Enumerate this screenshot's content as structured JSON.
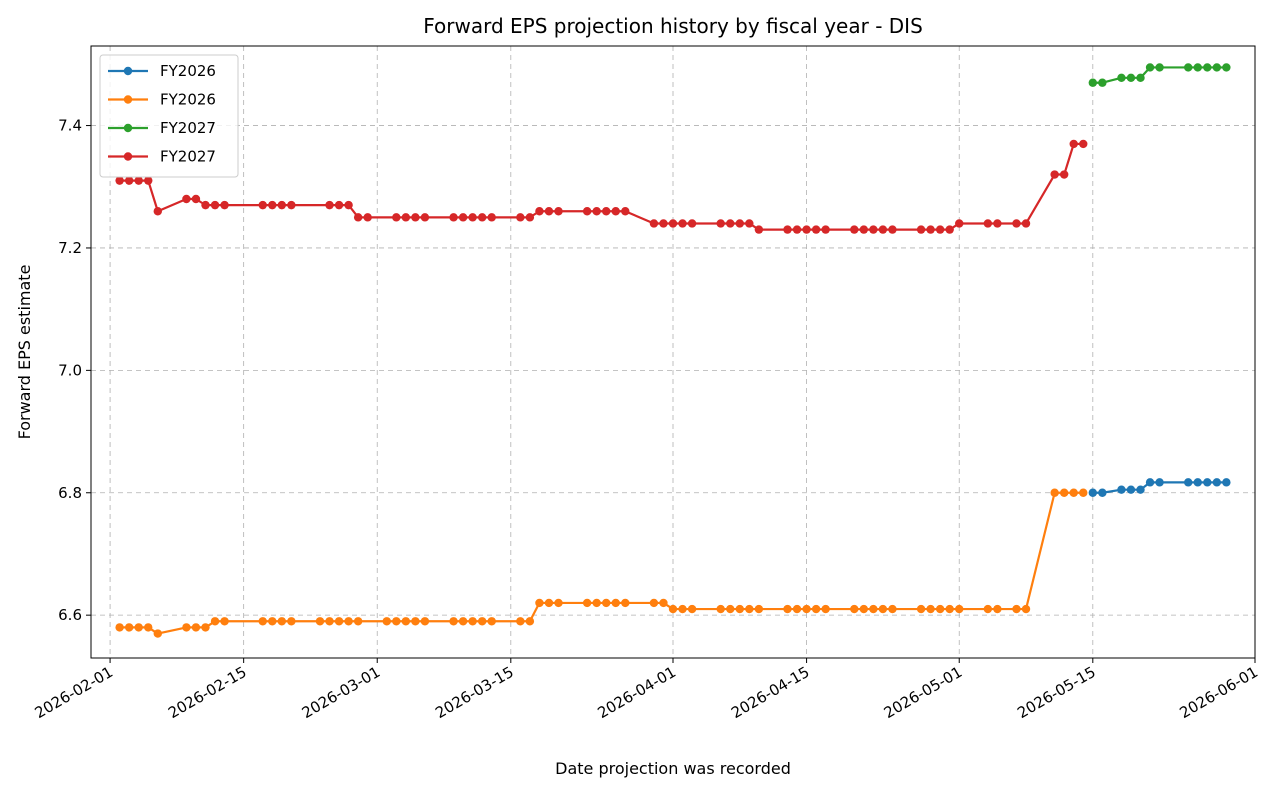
{
  "chart_data": {
    "type": "line",
    "title": "Forward EPS projection history by fiscal year - DIS",
    "xlabel": "Date projection was recorded",
    "ylabel": "Forward EPS estimate",
    "xlim": [
      "2026-01-30",
      "2026-06-01"
    ],
    "ylim": [
      6.53,
      7.53
    ],
    "grid": true,
    "legend": "top-left",
    "x_ticks": [
      "2026-02-01",
      "2026-02-15",
      "2026-03-01",
      "2026-03-15",
      "2026-04-01",
      "2026-04-15",
      "2026-05-01",
      "2026-05-15",
      "2026-06-01"
    ],
    "y_ticks": [
      6.6,
      6.8,
      7.0,
      7.2,
      7.4
    ],
    "y_tick_labels": [
      "6.6",
      "6.8",
      "7.0",
      "7.2",
      "7.4"
    ],
    "series": [
      {
        "name": "FY2026",
        "color": "#1f77b4",
        "points": [
          [
            "2026-05-15",
            6.8
          ],
          [
            "2026-05-16",
            6.8
          ],
          [
            "2026-05-18",
            6.805
          ],
          [
            "2026-05-19",
            6.805
          ],
          [
            "2026-05-20",
            6.805
          ],
          [
            "2026-05-21",
            6.817
          ],
          [
            "2026-05-22",
            6.817
          ],
          [
            "2026-05-25",
            6.817
          ],
          [
            "2026-05-26",
            6.817
          ],
          [
            "2026-05-27",
            6.817
          ],
          [
            "2026-05-28",
            6.817
          ],
          [
            "2026-05-29",
            6.817
          ]
        ]
      },
      {
        "name": "FY2026",
        "color": "#ff7f0e",
        "points": [
          [
            "2026-02-02",
            6.58
          ],
          [
            "2026-02-03",
            6.58
          ],
          [
            "2026-02-04",
            6.58
          ],
          [
            "2026-02-05",
            6.58
          ],
          [
            "2026-02-06",
            6.57
          ],
          [
            "2026-02-09",
            6.58
          ],
          [
            "2026-02-10",
            6.58
          ],
          [
            "2026-02-11",
            6.58
          ],
          [
            "2026-02-12",
            6.59
          ],
          [
            "2026-02-13",
            6.59
          ],
          [
            "2026-02-17",
            6.59
          ],
          [
            "2026-02-18",
            6.59
          ],
          [
            "2026-02-19",
            6.59
          ],
          [
            "2026-02-20",
            6.59
          ],
          [
            "2026-02-23",
            6.59
          ],
          [
            "2026-02-24",
            6.59
          ],
          [
            "2026-02-25",
            6.59
          ],
          [
            "2026-02-26",
            6.59
          ],
          [
            "2026-02-27",
            6.59
          ],
          [
            "2026-03-02",
            6.59
          ],
          [
            "2026-03-03",
            6.59
          ],
          [
            "2026-03-04",
            6.59
          ],
          [
            "2026-03-05",
            6.59
          ],
          [
            "2026-03-06",
            6.59
          ],
          [
            "2026-03-09",
            6.59
          ],
          [
            "2026-03-10",
            6.59
          ],
          [
            "2026-03-11",
            6.59
          ],
          [
            "2026-03-12",
            6.59
          ],
          [
            "2026-03-13",
            6.59
          ],
          [
            "2026-03-16",
            6.59
          ],
          [
            "2026-03-17",
            6.59
          ],
          [
            "2026-03-18",
            6.62
          ],
          [
            "2026-03-19",
            6.62
          ],
          [
            "2026-03-20",
            6.62
          ],
          [
            "2026-03-23",
            6.62
          ],
          [
            "2026-03-24",
            6.62
          ],
          [
            "2026-03-25",
            6.62
          ],
          [
            "2026-03-26",
            6.62
          ],
          [
            "2026-03-27",
            6.62
          ],
          [
            "2026-03-30",
            6.62
          ],
          [
            "2026-03-31",
            6.62
          ],
          [
            "2026-04-01",
            6.61
          ],
          [
            "2026-04-02",
            6.61
          ],
          [
            "2026-04-03",
            6.61
          ],
          [
            "2026-04-06",
            6.61
          ],
          [
            "2026-04-07",
            6.61
          ],
          [
            "2026-04-08",
            6.61
          ],
          [
            "2026-04-09",
            6.61
          ],
          [
            "2026-04-10",
            6.61
          ],
          [
            "2026-04-13",
            6.61
          ],
          [
            "2026-04-14",
            6.61
          ],
          [
            "2026-04-15",
            6.61
          ],
          [
            "2026-04-16",
            6.61
          ],
          [
            "2026-04-17",
            6.61
          ],
          [
            "2026-04-20",
            6.61
          ],
          [
            "2026-04-21",
            6.61
          ],
          [
            "2026-04-22",
            6.61
          ],
          [
            "2026-04-23",
            6.61
          ],
          [
            "2026-04-24",
            6.61
          ],
          [
            "2026-04-27",
            6.61
          ],
          [
            "2026-04-28",
            6.61
          ],
          [
            "2026-04-29",
            6.61
          ],
          [
            "2026-04-30",
            6.61
          ],
          [
            "2026-05-01",
            6.61
          ],
          [
            "2026-05-04",
            6.61
          ],
          [
            "2026-05-05",
            6.61
          ],
          [
            "2026-05-07",
            6.61
          ],
          [
            "2026-05-08",
            6.61
          ],
          [
            "2026-05-11",
            6.8
          ],
          [
            "2026-05-12",
            6.8
          ],
          [
            "2026-05-13",
            6.8
          ],
          [
            "2026-05-14",
            6.8
          ]
        ]
      },
      {
        "name": "FY2027",
        "color": "#2ca02c",
        "points": [
          [
            "2026-05-15",
            7.47
          ],
          [
            "2026-05-16",
            7.47
          ],
          [
            "2026-05-18",
            7.478
          ],
          [
            "2026-05-19",
            7.478
          ],
          [
            "2026-05-20",
            7.478
          ],
          [
            "2026-05-21",
            7.495
          ],
          [
            "2026-05-22",
            7.495
          ],
          [
            "2026-05-25",
            7.495
          ],
          [
            "2026-05-26",
            7.495
          ],
          [
            "2026-05-27",
            7.495
          ],
          [
            "2026-05-28",
            7.495
          ],
          [
            "2026-05-29",
            7.495
          ]
        ]
      },
      {
        "name": "FY2027",
        "color": "#d62728",
        "points": [
          [
            "2026-02-02",
            7.31
          ],
          [
            "2026-02-03",
            7.31
          ],
          [
            "2026-02-04",
            7.31
          ],
          [
            "2026-02-05",
            7.31
          ],
          [
            "2026-02-06",
            7.26
          ],
          [
            "2026-02-09",
            7.28
          ],
          [
            "2026-02-10",
            7.28
          ],
          [
            "2026-02-11",
            7.27
          ],
          [
            "2026-02-12",
            7.27
          ],
          [
            "2026-02-13",
            7.27
          ],
          [
            "2026-02-17",
            7.27
          ],
          [
            "2026-02-18",
            7.27
          ],
          [
            "2026-02-19",
            7.27
          ],
          [
            "2026-02-20",
            7.27
          ],
          [
            "2026-02-24",
            7.27
          ],
          [
            "2026-02-25",
            7.27
          ],
          [
            "2026-02-26",
            7.27
          ],
          [
            "2026-02-27",
            7.25
          ],
          [
            "2026-02-28",
            7.25
          ],
          [
            "2026-03-03",
            7.25
          ],
          [
            "2026-03-04",
            7.25
          ],
          [
            "2026-03-05",
            7.25
          ],
          [
            "2026-03-06",
            7.25
          ],
          [
            "2026-03-09",
            7.25
          ],
          [
            "2026-03-10",
            7.25
          ],
          [
            "2026-03-11",
            7.25
          ],
          [
            "2026-03-12",
            7.25
          ],
          [
            "2026-03-13",
            7.25
          ],
          [
            "2026-03-16",
            7.25
          ],
          [
            "2026-03-17",
            7.25
          ],
          [
            "2026-03-18",
            7.26
          ],
          [
            "2026-03-19",
            7.26
          ],
          [
            "2026-03-20",
            7.26
          ],
          [
            "2026-03-23",
            7.26
          ],
          [
            "2026-03-24",
            7.26
          ],
          [
            "2026-03-25",
            7.26
          ],
          [
            "2026-03-26",
            7.26
          ],
          [
            "2026-03-27",
            7.26
          ],
          [
            "2026-03-30",
            7.24
          ],
          [
            "2026-03-31",
            7.24
          ],
          [
            "2026-04-01",
            7.24
          ],
          [
            "2026-04-02",
            7.24
          ],
          [
            "2026-04-03",
            7.24
          ],
          [
            "2026-04-06",
            7.24
          ],
          [
            "2026-04-07",
            7.24
          ],
          [
            "2026-04-08",
            7.24
          ],
          [
            "2026-04-09",
            7.24
          ],
          [
            "2026-04-10",
            7.23
          ],
          [
            "2026-04-13",
            7.23
          ],
          [
            "2026-04-14",
            7.23
          ],
          [
            "2026-04-15",
            7.23
          ],
          [
            "2026-04-16",
            7.23
          ],
          [
            "2026-04-17",
            7.23
          ],
          [
            "2026-04-20",
            7.23
          ],
          [
            "2026-04-21",
            7.23
          ],
          [
            "2026-04-22",
            7.23
          ],
          [
            "2026-04-23",
            7.23
          ],
          [
            "2026-04-24",
            7.23
          ],
          [
            "2026-04-27",
            7.23
          ],
          [
            "2026-04-28",
            7.23
          ],
          [
            "2026-04-29",
            7.23
          ],
          [
            "2026-04-30",
            7.23
          ],
          [
            "2026-05-01",
            7.24
          ],
          [
            "2026-05-04",
            7.24
          ],
          [
            "2026-05-05",
            7.24
          ],
          [
            "2026-05-07",
            7.24
          ],
          [
            "2026-05-08",
            7.24
          ],
          [
            "2026-05-11",
            7.32
          ],
          [
            "2026-05-12",
            7.32
          ],
          [
            "2026-05-13",
            7.37
          ],
          [
            "2026-05-14",
            7.37
          ]
        ]
      }
    ]
  }
}
